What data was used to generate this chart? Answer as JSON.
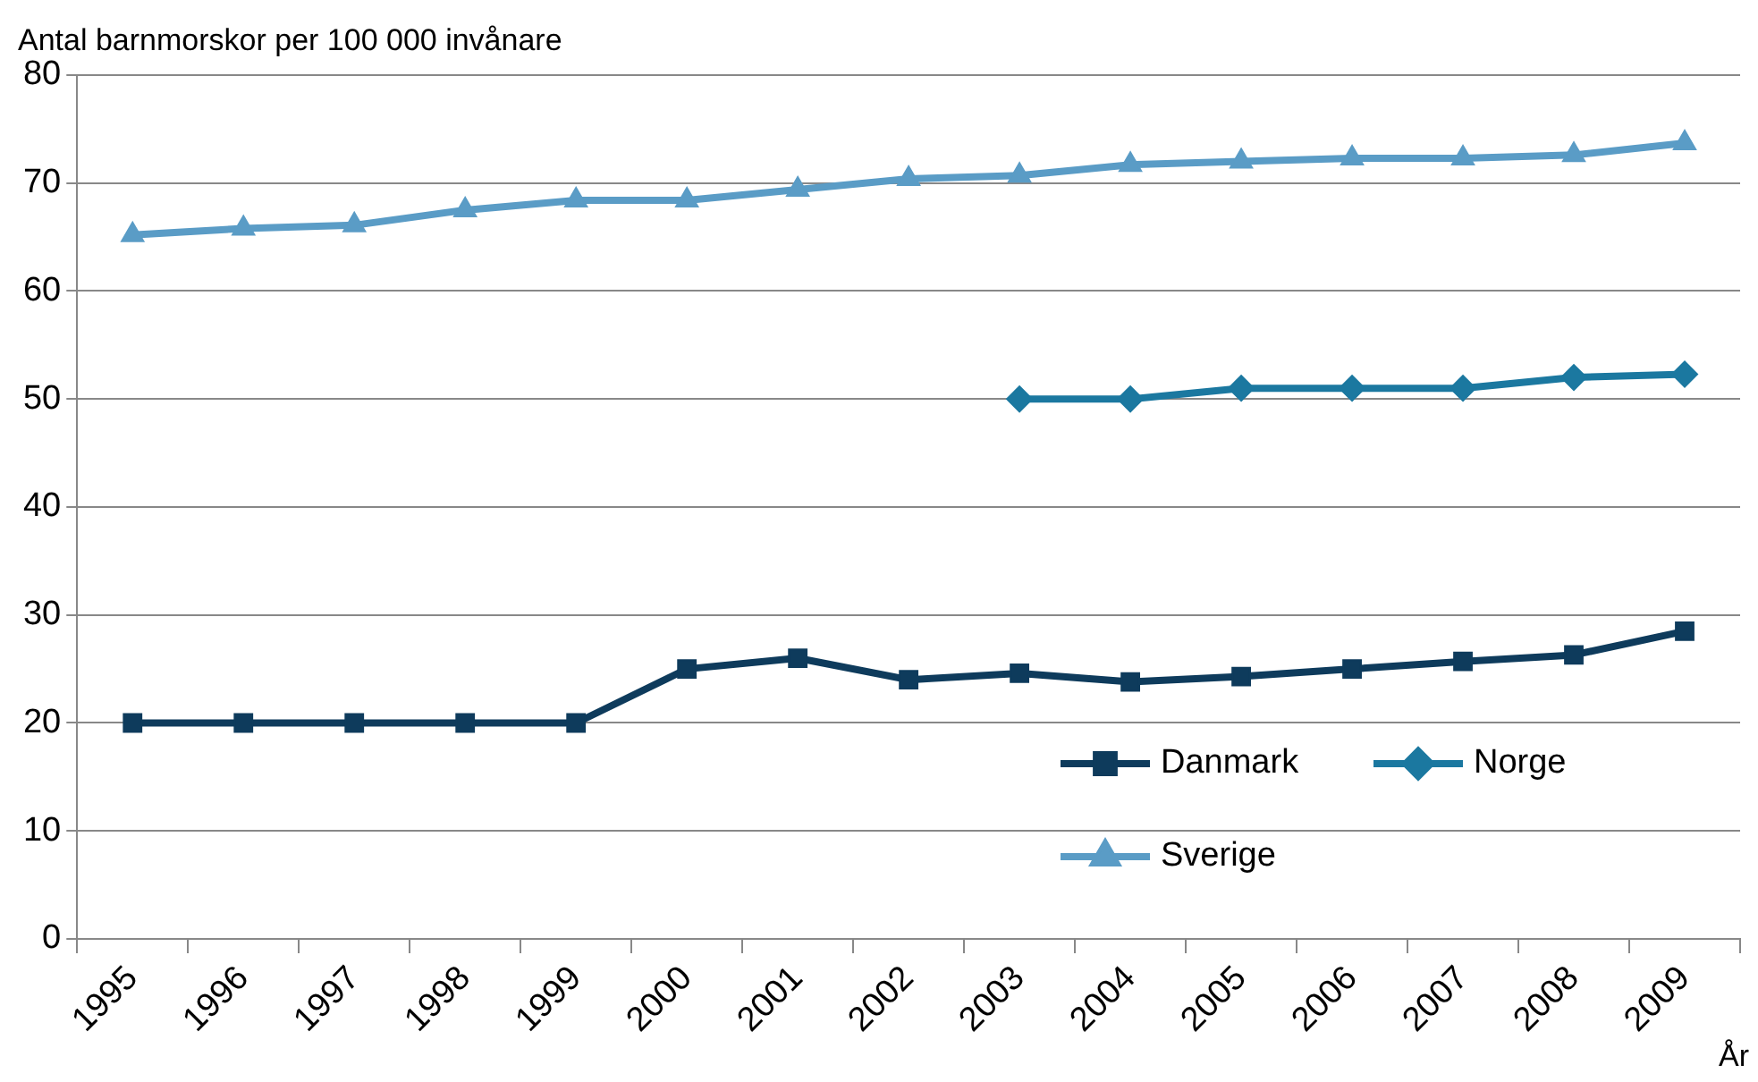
{
  "chart_data": {
    "type": "line",
    "ylabel": "Antal barnmorskor per 100 000 invånare",
    "xlabel": "År",
    "categories": [
      "1995",
      "1996",
      "1997",
      "1998",
      "1999",
      "2000",
      "2001",
      "2002",
      "2003",
      "2004",
      "2005",
      "2006",
      "2007",
      "2008",
      "2009"
    ],
    "series": [
      {
        "name": "Danmark",
        "color": "#0e3b5c",
        "marker": "square",
        "values": [
          20,
          20,
          20,
          20,
          20,
          25,
          26,
          24,
          24.6,
          23.8,
          24.3,
          25,
          25.7,
          26.3,
          28.5
        ]
      },
      {
        "name": "Norge",
        "color": "#1b78a0",
        "marker": "diamond",
        "values": [
          null,
          null,
          null,
          null,
          null,
          null,
          null,
          null,
          50,
          50,
          51,
          51,
          51,
          52,
          52.3
        ]
      },
      {
        "name": "Sverige",
        "color": "#5a9cc6",
        "marker": "triangle",
        "values": [
          65.2,
          65.8,
          66.1,
          67.5,
          68.4,
          68.4,
          69.4,
          70.4,
          70.7,
          71.7,
          72,
          72.3,
          72.3,
          72.6,
          73.7
        ]
      }
    ],
    "ylim": [
      0,
      80
    ],
    "yticks": [
      0,
      10,
      20,
      30,
      40,
      50,
      60,
      70,
      80
    ],
    "grid": "y",
    "legend": "bottom right",
    "line_style": "solid"
  }
}
